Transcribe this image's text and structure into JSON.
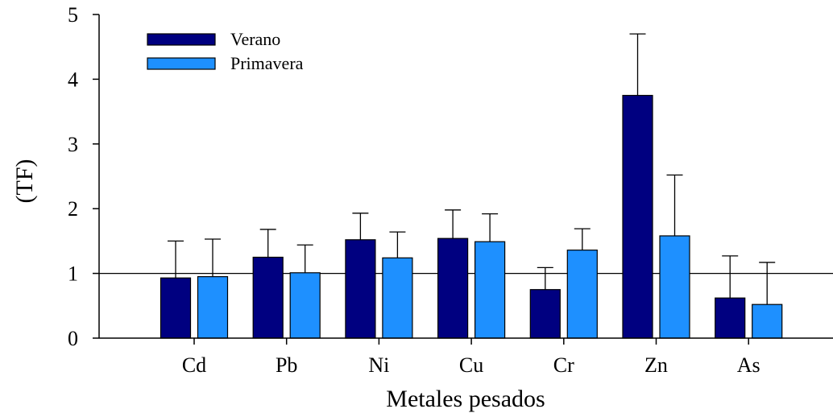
{
  "chart_data": {
    "type": "bar",
    "title": "",
    "xlabel": "Metales pesados",
    "ylabel": "(TF)",
    "ylim": [
      0,
      5
    ],
    "yticks": [
      0,
      1,
      2,
      3,
      4,
      5
    ],
    "reference_line": 1,
    "categories": [
      "Cd",
      "Pb",
      "Ni",
      "Cu",
      "Cr",
      "Zn",
      "As"
    ],
    "series": [
      {
        "name": "Verano",
        "color": "#000080",
        "values": [
          0.93,
          1.25,
          1.52,
          1.54,
          0.75,
          3.75,
          0.62
        ],
        "errors": [
          0.57,
          0.43,
          0.41,
          0.44,
          0.34,
          0.95,
          0.65
        ]
      },
      {
        "name": "Primavera",
        "color": "#1E90FF",
        "values": [
          0.95,
          1.01,
          1.24,
          1.49,
          1.36,
          1.58,
          0.52
        ],
        "errors": [
          0.58,
          0.43,
          0.4,
          0.43,
          0.33,
          0.94,
          0.65
        ]
      }
    ],
    "legend_position": "top-left"
  }
}
